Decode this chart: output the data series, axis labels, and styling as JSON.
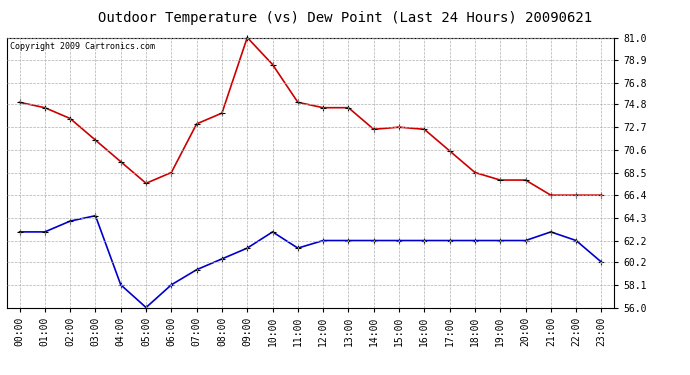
{
  "title": "Outdoor Temperature (vs) Dew Point (Last 24 Hours) 20090621",
  "copyright": "Copyright 2009 Cartronics.com",
  "x_labels": [
    "00:00",
    "01:00",
    "02:00",
    "03:00",
    "04:00",
    "05:00",
    "06:00",
    "07:00",
    "08:00",
    "09:00",
    "10:00",
    "11:00",
    "12:00",
    "13:00",
    "14:00",
    "15:00",
    "16:00",
    "17:00",
    "18:00",
    "19:00",
    "20:00",
    "21:00",
    "22:00",
    "23:00"
  ],
  "temp_data": [
    75.0,
    74.5,
    73.5,
    71.5,
    69.5,
    67.5,
    68.5,
    73.0,
    74.0,
    81.0,
    78.5,
    75.0,
    74.5,
    74.5,
    72.5,
    72.7,
    72.5,
    70.5,
    68.5,
    67.8,
    67.8,
    66.4,
    66.4,
    66.4
  ],
  "dew_data": [
    63.0,
    63.0,
    64.0,
    64.5,
    58.1,
    56.0,
    58.1,
    59.5,
    60.5,
    61.5,
    63.0,
    61.5,
    62.2,
    62.2,
    62.2,
    62.2,
    62.2,
    62.2,
    62.2,
    62.2,
    62.2,
    63.0,
    62.2,
    60.2
  ],
  "temp_color": "#cc0000",
  "dew_color": "#0000cc",
  "bg_color": "#ffffff",
  "grid_color": "#b0b0b0",
  "ylim_min": 56.0,
  "ylim_max": 81.0,
  "yticks": [
    56.0,
    58.1,
    60.2,
    62.2,
    64.3,
    66.4,
    68.5,
    70.6,
    72.7,
    74.8,
    76.8,
    78.9,
    81.0
  ],
  "title_fontsize": 10,
  "copyright_fontsize": 6,
  "tick_fontsize": 7,
  "marker": "+",
  "marker_size": 5,
  "linewidth": 1.2
}
